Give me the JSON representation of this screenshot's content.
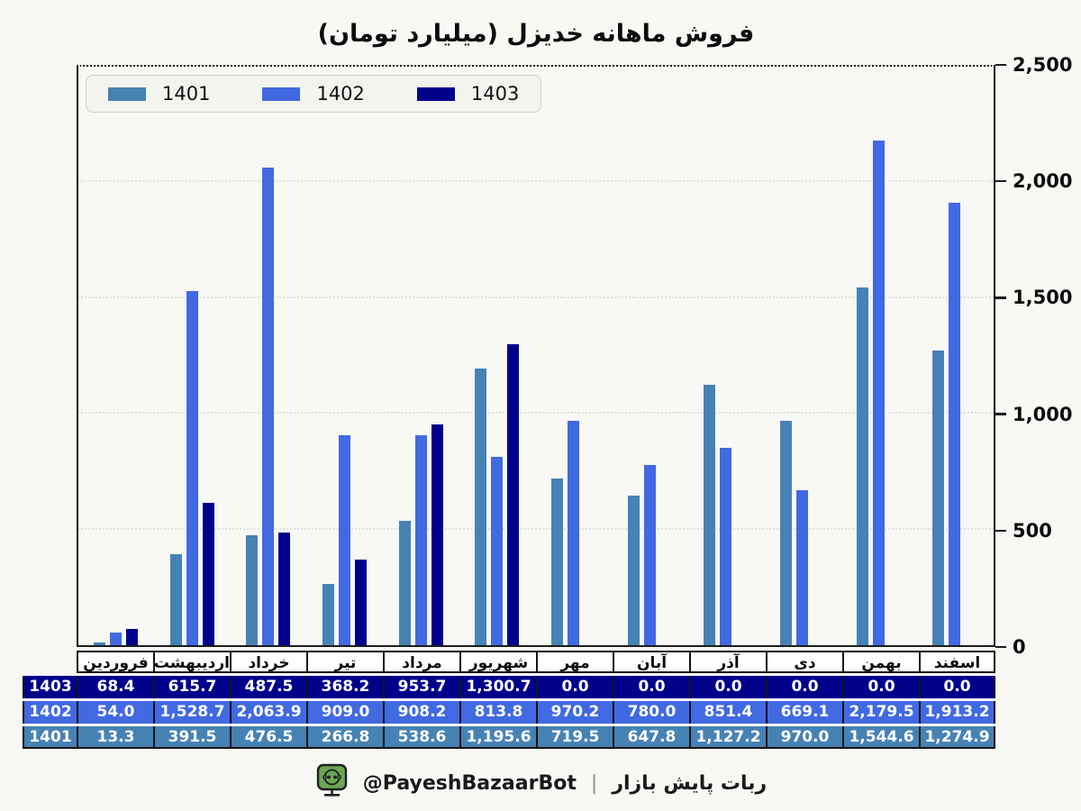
{
  "title": "فروش ماهانه خدیزل (میلیارد تومان)",
  "chart_data": {
    "type": "bar",
    "title": "فروش ماهانه خدیزل (میلیارد تومان)",
    "categories": [
      "فروردین",
      "اردیبهشت",
      "خرداد",
      "تیر",
      "مرداد",
      "شهریور",
      "مهر",
      "آبان",
      "آذر",
      "دی",
      "بهمن",
      "اسفند"
    ],
    "series": [
      {
        "name": "1401",
        "color": "#4682B4",
        "values": [
          13.3,
          391.5,
          476.5,
          266.8,
          538.6,
          1195.6,
          719.5,
          647.8,
          1127.2,
          970.0,
          1544.6,
          1274.9
        ]
      },
      {
        "name": "1402",
        "color": "#4169E1",
        "values": [
          54.0,
          1528.7,
          2063.9,
          909.0,
          908.2,
          813.8,
          970.2,
          780.0,
          851.4,
          669.1,
          2179.5,
          1913.2
        ]
      },
      {
        "name": "1403",
        "color": "#00008B",
        "values": [
          68.4,
          615.7,
          487.5,
          368.2,
          953.7,
          1300.7,
          0.0,
          0.0,
          0.0,
          0.0,
          0.0,
          0.0
        ]
      }
    ],
    "xlabel": "",
    "ylabel": "",
    "ylim": [
      0,
      2500
    ],
    "ytick_values": [
      0,
      500,
      1000,
      1500,
      2000,
      2500
    ],
    "ytick_labels": [
      "0",
      "500",
      "1,000",
      "1,500",
      "2,000",
      "2,500"
    ],
    "yaxis_side": "right",
    "grid": "horizontal-dotted",
    "legend_position": "top-left"
  },
  "table": {
    "rows": [
      {
        "label": "1403",
        "color": "#00008B",
        "values": [
          "68.4",
          "615.7",
          "487.5",
          "368.2",
          "953.7",
          "1,300.7",
          "0.0",
          "0.0",
          "0.0",
          "0.0",
          "0.0",
          "0.0"
        ]
      },
      {
        "label": "1402",
        "color": "#4169E1",
        "values": [
          "54.0",
          "1,528.7",
          "2,063.9",
          "909.0",
          "908.2",
          "813.8",
          "970.2",
          "780.0",
          "851.4",
          "669.1",
          "2,179.5",
          "1,913.2"
        ]
      },
      {
        "label": "1401",
        "color": "#4682B4",
        "values": [
          "13.3",
          "391.5",
          "476.5",
          "266.8",
          "538.6",
          "1,195.6",
          "719.5",
          "647.8",
          "1,127.2",
          "970.0",
          "1,544.6",
          "1,274.9"
        ]
      }
    ]
  },
  "footer": {
    "handle": "@PayeshBazaarBot",
    "separator": "|",
    "caption": "ربات پایش بازار",
    "icon": "robot-monitor-icon",
    "icon_color": "#69a755"
  }
}
